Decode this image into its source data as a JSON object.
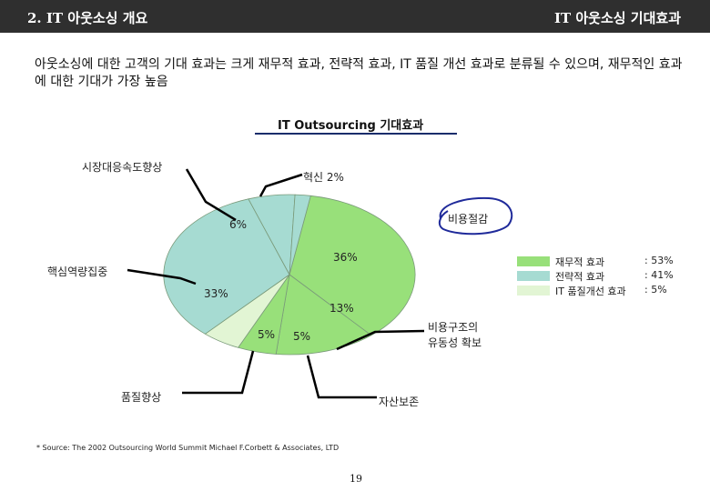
{
  "header": {
    "left_title": "2. IT 아웃소싱 개요",
    "right_title": "IT 아웃소싱 기대효과"
  },
  "intro_text": "아웃소싱에 대한 고객의 기대 효과는 크게 재무적 효과, 전략적 효과, IT 품질 개선 효과로 분류될 수 있으며, 재무적인 효과에 대한 기대가 가장 높음",
  "chart_data": {
    "type": "pie",
    "title": "IT Outsourcing 기대효과",
    "slices": [
      {
        "label": "비용절감",
        "value": 36,
        "pct_label": "36%",
        "group": "재무적 효과",
        "color": "#98e07a"
      },
      {
        "label": "비용구조의 유동성 확보",
        "value": 13,
        "pct_label": "13%",
        "group": "재무적 효과",
        "color": "#98e07a"
      },
      {
        "label": "자산보존",
        "value": 5,
        "pct_label": "5%",
        "group": "재무적 효과",
        "color": "#98e07a"
      },
      {
        "label": "품질향상",
        "value": 5,
        "pct_label": "5%",
        "group": "IT 품질개선 효과",
        "color": "#e2f5d4"
      },
      {
        "label": "핵심역량집중",
        "value": 33,
        "pct_label": "33%",
        "group": "전략적 효과",
        "color": "#a6dbd2"
      },
      {
        "label": "시장대응속도향상",
        "value": 6,
        "pct_label": "6%",
        "group": "전략적 효과",
        "color": "#a6dbd2"
      },
      {
        "label": "혁신",
        "value": 2,
        "pct_label": "2%",
        "group": "전략적 효과",
        "color": "#a6dbd2"
      }
    ],
    "callouts": {
      "market_response": "시장대응속도향상",
      "innovation": "혁신  2%",
      "cost_reduction": "비용절감",
      "core_competency": "핵심역량집중",
      "cost_structure_line1": "비용구조의",
      "cost_structure_line2": "유동성 확보",
      "quality": "품질향상",
      "asset": "자산보존"
    },
    "legend": [
      {
        "name": "재무적 효과",
        "value_label": ": 53%",
        "value": 53,
        "color": "#98e07a"
      },
      {
        "name": "전략적 효과",
        "value_label": ": 41%",
        "value": 41,
        "color": "#a6dbd2"
      },
      {
        "name": "IT 품질개선 효과",
        "value_label": ":  5%",
        "value": 5,
        "color": "#e2f5d4"
      }
    ]
  },
  "footer": "* Source: The 2002 Outsourcing World Summit Michael F.Corbett & Associates, LTD",
  "page_number": "19"
}
